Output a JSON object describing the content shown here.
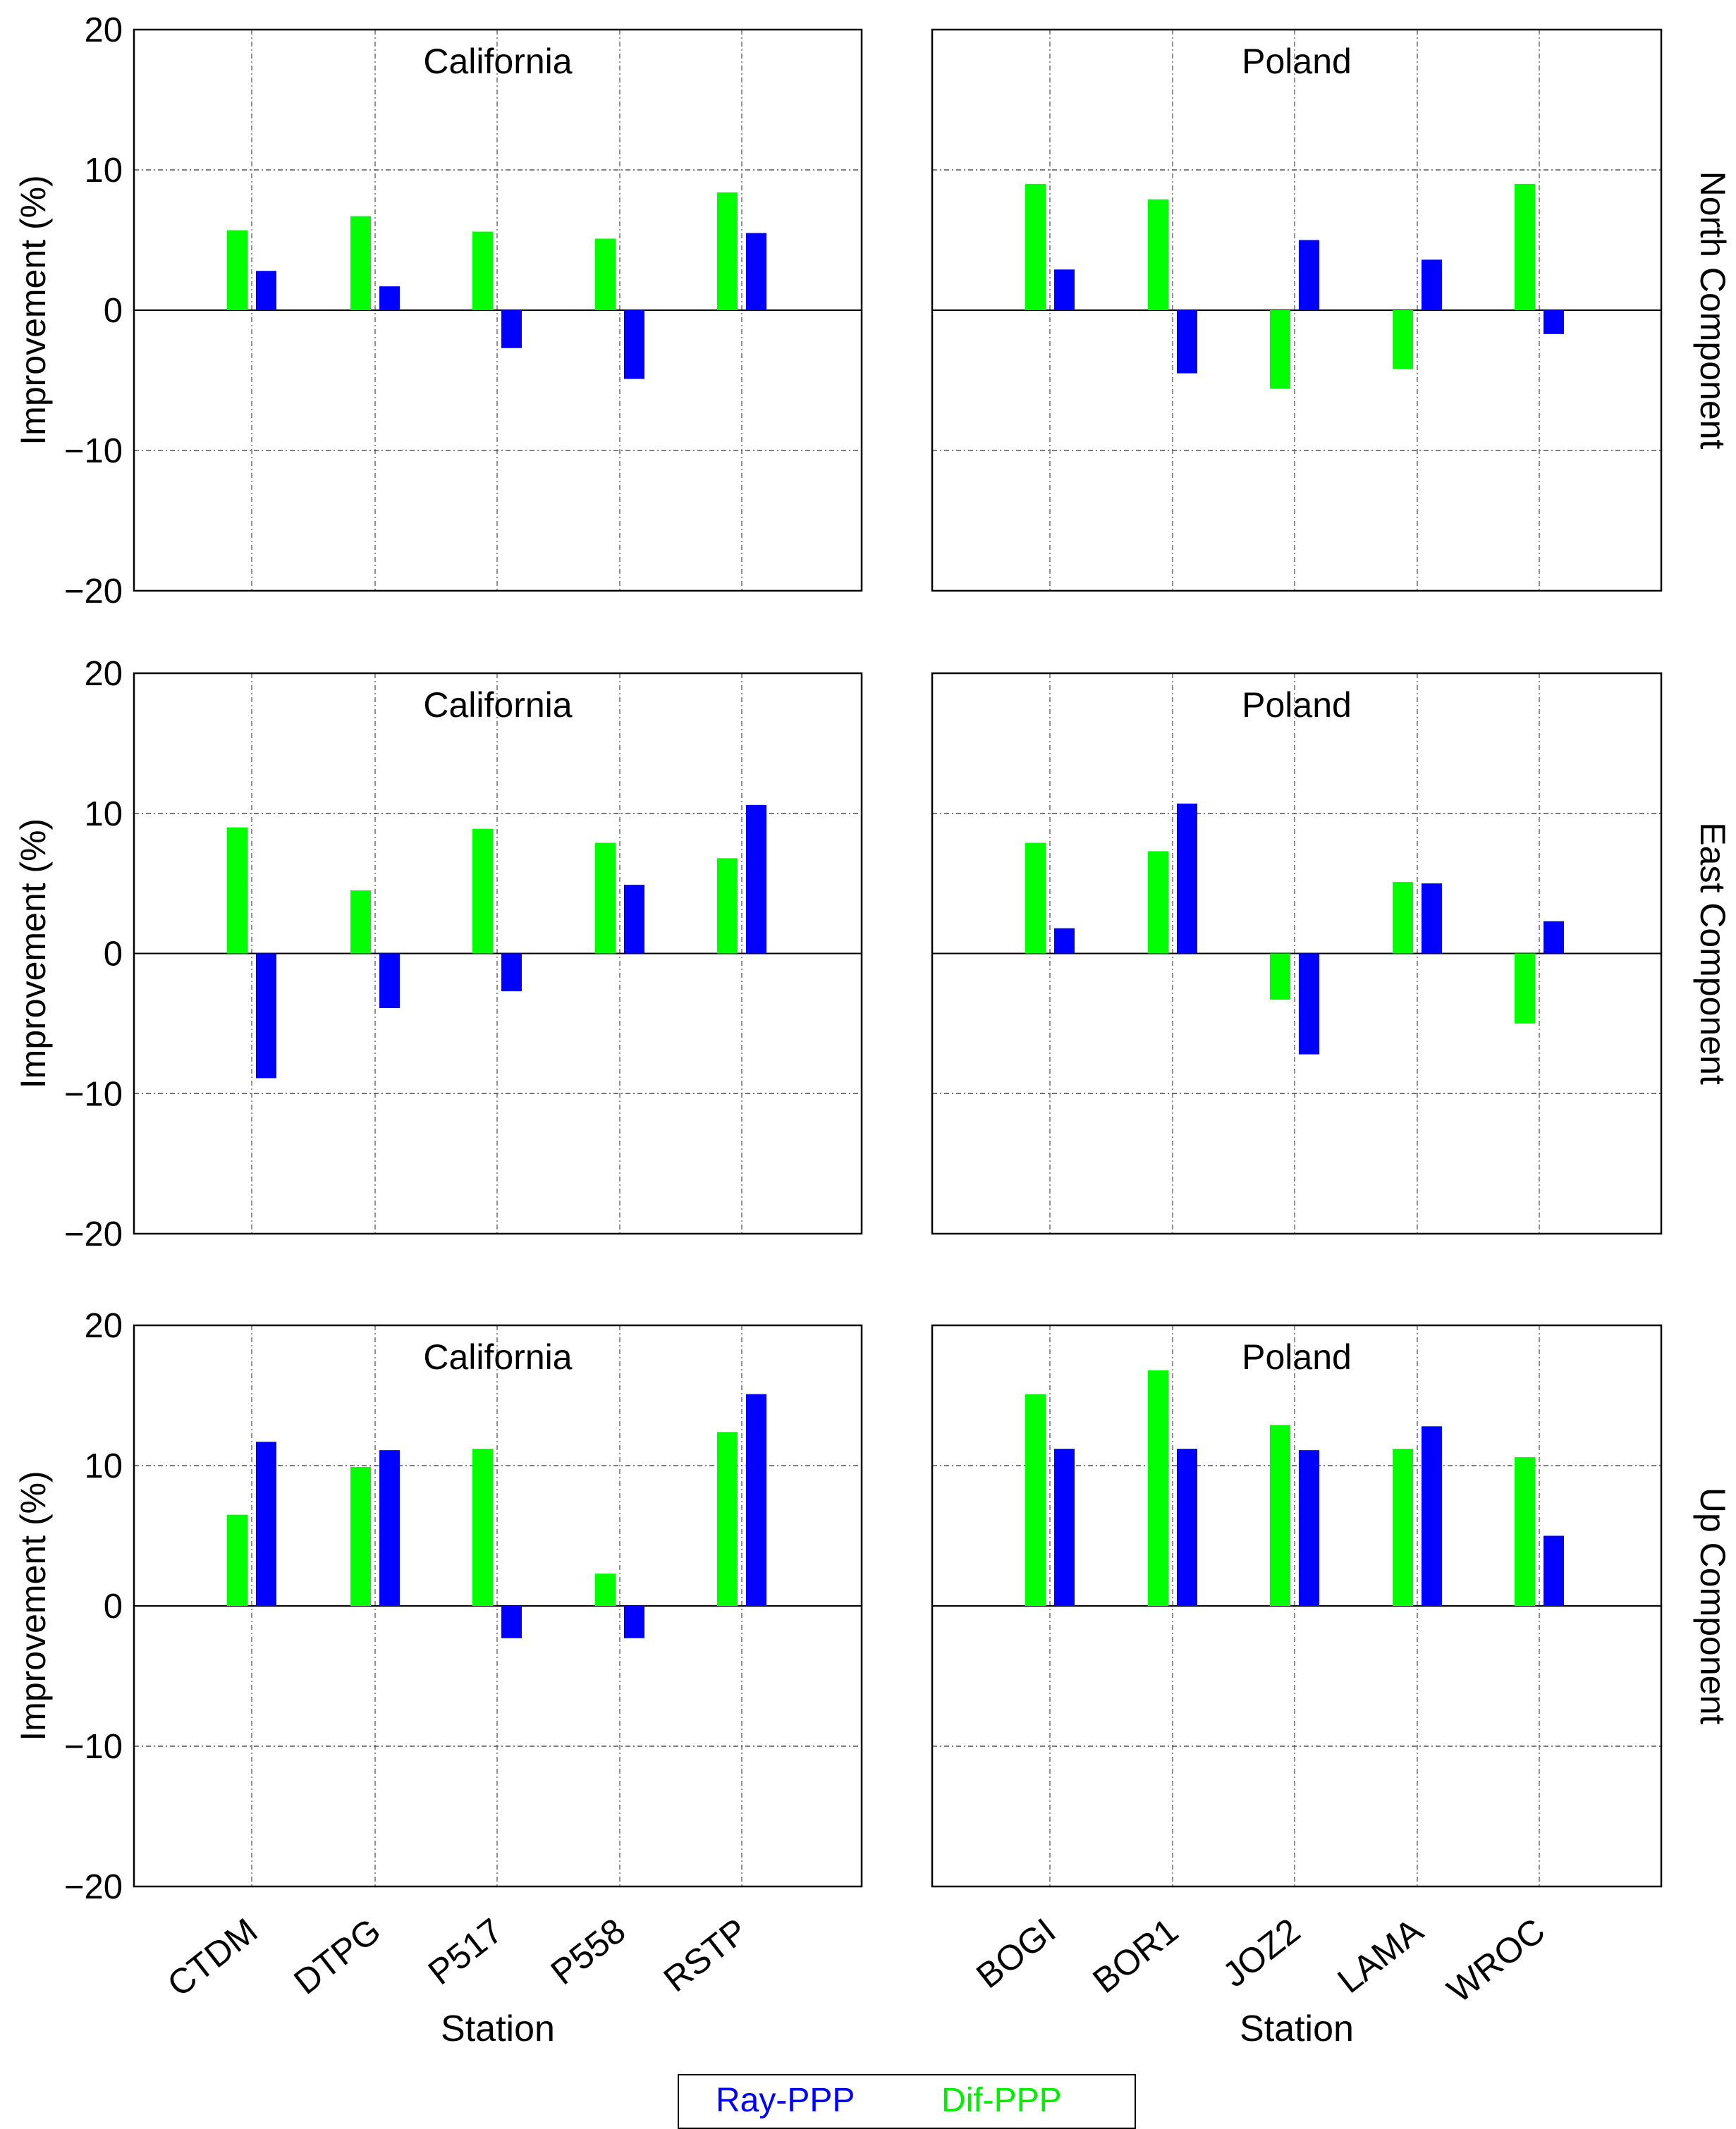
{
  "chart_data": {
    "type": "bar",
    "ylim": [
      -20,
      20
    ],
    "yticks": [
      -20,
      -10,
      0,
      10,
      20
    ],
    "ylabel": "Improvement (%)",
    "xlabel": "Station",
    "legend": {
      "placement": "bottom-center",
      "entries": [
        {
          "name": "Ray-PPP",
          "color": "#0000ff"
        },
        {
          "name": "Dif-PPP",
          "color": "#00ff00"
        }
      ]
    },
    "regions": [
      {
        "title": "California",
        "stations": [
          "CTDM",
          "DTPG",
          "P517",
          "P558",
          "RSTP"
        ]
      },
      {
        "title": "Poland",
        "stations": [
          "BOGI",
          "BOR1",
          "JOZ2",
          "LAMA",
          "WROC"
        ]
      }
    ],
    "rows": [
      {
        "component": "North Component",
        "panels": [
          {
            "region": "California",
            "series": [
              {
                "name": "Dif-PPP",
                "values": [
                  5.7,
                  6.7,
                  5.6,
                  5.1,
                  8.4
                ]
              },
              {
                "name": "Ray-PPP",
                "values": [
                  2.8,
                  1.7,
                  -2.7,
                  -4.9,
                  5.5
                ]
              }
            ]
          },
          {
            "region": "Poland",
            "series": [
              {
                "name": "Dif-PPP",
                "values": [
                  9.0,
                  7.9,
                  -5.6,
                  -4.2,
                  9.0
                ]
              },
              {
                "name": "Ray-PPP",
                "values": [
                  2.9,
                  -4.5,
                  5.0,
                  3.6,
                  -1.7
                ]
              }
            ]
          }
        ]
      },
      {
        "component": "East Component",
        "panels": [
          {
            "region": "California",
            "series": [
              {
                "name": "Dif-PPP",
                "values": [
                  9.0,
                  4.5,
                  8.9,
                  7.9,
                  6.8
                ]
              },
              {
                "name": "Ray-PPP",
                "values": [
                  -8.9,
                  -3.9,
                  -2.7,
                  4.9,
                  10.6
                ]
              }
            ]
          },
          {
            "region": "Poland",
            "series": [
              {
                "name": "Dif-PPP",
                "values": [
                  7.9,
                  7.3,
                  -3.3,
                  5.1,
                  -5.0
                ]
              },
              {
                "name": "Ray-PPP",
                "values": [
                  1.8,
                  10.7,
                  -7.2,
                  5.0,
                  2.3
                ]
              }
            ]
          }
        ]
      },
      {
        "component": "Up Component",
        "panels": [
          {
            "region": "California",
            "series": [
              {
                "name": "Dif-PPP",
                "values": [
                  6.5,
                  9.9,
                  11.2,
                  2.3,
                  12.4
                ]
              },
              {
                "name": "Ray-PPP",
                "values": [
                  11.7,
                  11.1,
                  -2.3,
                  -2.3,
                  15.1
                ]
              }
            ]
          },
          {
            "region": "Poland",
            "series": [
              {
                "name": "Dif-PPP",
                "values": [
                  15.1,
                  16.8,
                  12.9,
                  11.2,
                  10.6
                ]
              },
              {
                "name": "Ray-PPP",
                "values": [
                  11.2,
                  11.2,
                  11.1,
                  12.8,
                  5.0
                ]
              }
            ]
          }
        ]
      }
    ]
  }
}
